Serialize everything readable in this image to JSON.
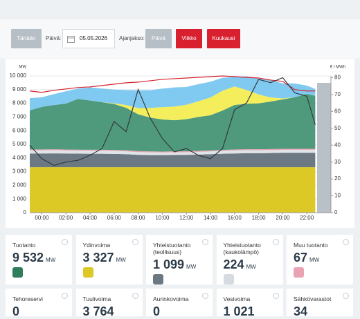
{
  "controls": {
    "today": "Tänään",
    "day_label": "Päivä:",
    "date": "05.05.2026",
    "period_label": "Ajanjakso:",
    "periods": [
      "Päivä",
      "Viikko",
      "Kuukausi"
    ]
  },
  "chart_data": {
    "type": "area",
    "y_unit": "MW",
    "y2_unit": "€ / MWh",
    "x": [
      -1,
      0,
      1,
      2,
      3,
      4,
      5,
      6,
      7,
      8,
      9,
      10,
      11,
      12,
      13,
      14,
      15,
      16,
      17,
      18,
      19,
      20,
      21,
      22,
      22.7
    ],
    "xlim": [
      -1,
      24
    ],
    "xticks": [
      {
        "value": 0,
        "label": "00:00"
      },
      {
        "value": 2,
        "label": "02:00"
      },
      {
        "value": 4,
        "label": "04:00"
      },
      {
        "value": 6,
        "label": "06:00"
      },
      {
        "value": 8,
        "label": "08:00"
      },
      {
        "value": 10,
        "label": "10:00"
      },
      {
        "value": 12,
        "label": "12:00"
      },
      {
        "value": 14,
        "label": "14:00"
      },
      {
        "value": 16,
        "label": "16:00"
      },
      {
        "value": 18,
        "label": "18:00"
      },
      {
        "value": 20,
        "label": "20:00"
      },
      {
        "value": 22,
        "label": "22:00"
      }
    ],
    "ylim": [
      0,
      10000
    ],
    "yticks": [
      0,
      {
        "value": 1000,
        "label": "1 000"
      },
      {
        "value": 2000,
        "label": "2 000"
      },
      {
        "value": 3000,
        "label": "3 000"
      },
      {
        "value": 4000,
        "label": "4 000"
      },
      {
        "value": 5000,
        "label": "5 000"
      },
      {
        "value": 6000,
        "label": "6 000"
      },
      {
        "value": 7000,
        "label": "7 000"
      },
      {
        "value": 8000,
        "label": "8 000"
      },
      {
        "value": 9000,
        "label": "9 000"
      },
      {
        "value": 10000,
        "label": "10 000"
      }
    ],
    "y2lim": [
      0,
      81
    ],
    "y2ticks": [
      0,
      10,
      20,
      30,
      40,
      50,
      60,
      70,
      80
    ],
    "grid": true,
    "series": [
      {
        "color": "#dcc926",
        "values": [
          3330,
          3330,
          3330,
          3330,
          3330,
          3330,
          3330,
          3330,
          3330,
          3330,
          3330,
          3330,
          3330,
          3330,
          3330,
          3330,
          3330,
          3330,
          3330,
          3330,
          3330,
          3330,
          3330,
          3330,
          3330
        ]
      },
      {
        "color": "#6c7882",
        "values": [
          1000,
          1000,
          1010,
          1000,
          990,
          980,
          980,
          970,
          950,
          900,
          880,
          880,
          890,
          900,
          920,
          950,
          980,
          1000,
          1020,
          1020,
          1030,
          1050,
          1050,
          1050,
          1050
        ]
      },
      {
        "color": "#dfe4e8",
        "values": [
          230,
          230,
          230,
          220,
          220,
          220,
          220,
          220,
          210,
          200,
          200,
          190,
          190,
          190,
          200,
          200,
          210,
          220,
          220,
          220,
          220,
          220,
          220,
          220,
          220
        ]
      },
      {
        "color": "#e9a3b3",
        "values": [
          70,
          70,
          70,
          70,
          70,
          70,
          70,
          70,
          70,
          70,
          70,
          70,
          70,
          70,
          70,
          70,
          70,
          70,
          70,
          70,
          70,
          70,
          70,
          70,
          70
        ]
      },
      {
        "color": "#4f9a7d",
        "values": [
          2850,
          3110,
          3230,
          3360,
          3710,
          3610,
          3480,
          3360,
          3110,
          2700,
          2480,
          2350,
          2280,
          2350,
          2480,
          2580,
          2880,
          3260,
          3330,
          3360,
          3480,
          3610,
          3780,
          4020,
          3880
        ]
      },
      {
        "color": "#f4ee5c",
        "values": [
          0,
          0,
          0,
          0,
          0,
          0,
          0,
          50,
          200,
          450,
          700,
          900,
          1000,
          1050,
          1150,
          1300,
          1450,
          1350,
          1000,
          650,
          300,
          80,
          0,
          0,
          0
        ]
      },
      {
        "color": "#80c9f0",
        "values": [
          900,
          700,
          800,
          900,
          750,
          950,
          1000,
          1000,
          1100,
          1300,
          1300,
          1350,
          1400,
          1300,
          1250,
          1150,
          950,
          700,
          1000,
          1150,
          1250,
          1100,
          1000,
          600,
          500
        ]
      }
    ],
    "lines": [
      {
        "color": "#d3202c",
        "values": [
          8900,
          8800,
          8950,
          9050,
          9150,
          9200,
          9300,
          9400,
          9500,
          9550,
          9650,
          9750,
          9800,
          9850,
          9900,
          9950,
          10000,
          9950,
          9900,
          9850,
          9700,
          9600,
          9000,
          8900,
          8900
        ]
      },
      {
        "color": "#33393f",
        "axis": "y2",
        "values": [
          40,
          32,
          28,
          30,
          31,
          34,
          38,
          54,
          48,
          73,
          56,
          44,
          36,
          38,
          34,
          32,
          38,
          61,
          65,
          79,
          77,
          80,
          71,
          69,
          52
        ]
      }
    ]
  },
  "cards": [
    {
      "title": "Tuotanto",
      "value": "9 532",
      "unit": "MW",
      "icon_color": "#2e7d5b"
    },
    {
      "title": "Ydinvoima",
      "value": "3 327",
      "unit": "MW",
      "icon_color": "#dcc926"
    },
    {
      "title": "Yhteistuotanto (teollisuus)",
      "value": "1 099",
      "unit": "MW",
      "icon_color": "#6c7882"
    },
    {
      "title": "Yhteistuotanto (kaukolämpö)",
      "value": "224",
      "unit": "MW",
      "icon_color": "#d5dbe0"
    },
    {
      "title": "Muu tuotanto",
      "value": "67",
      "unit": "MW",
      "icon_color": "#e9a3b3"
    },
    {
      "title": "Tehoreservi",
      "value": "0"
    },
    {
      "title": "Tuulivoima",
      "value": "3 764"
    },
    {
      "title": "Aurinkovoima",
      "value": "0"
    },
    {
      "title": "Vesivoima",
      "value": "1 021"
    },
    {
      "title": "Sähkövarastot",
      "value": "34"
    }
  ]
}
